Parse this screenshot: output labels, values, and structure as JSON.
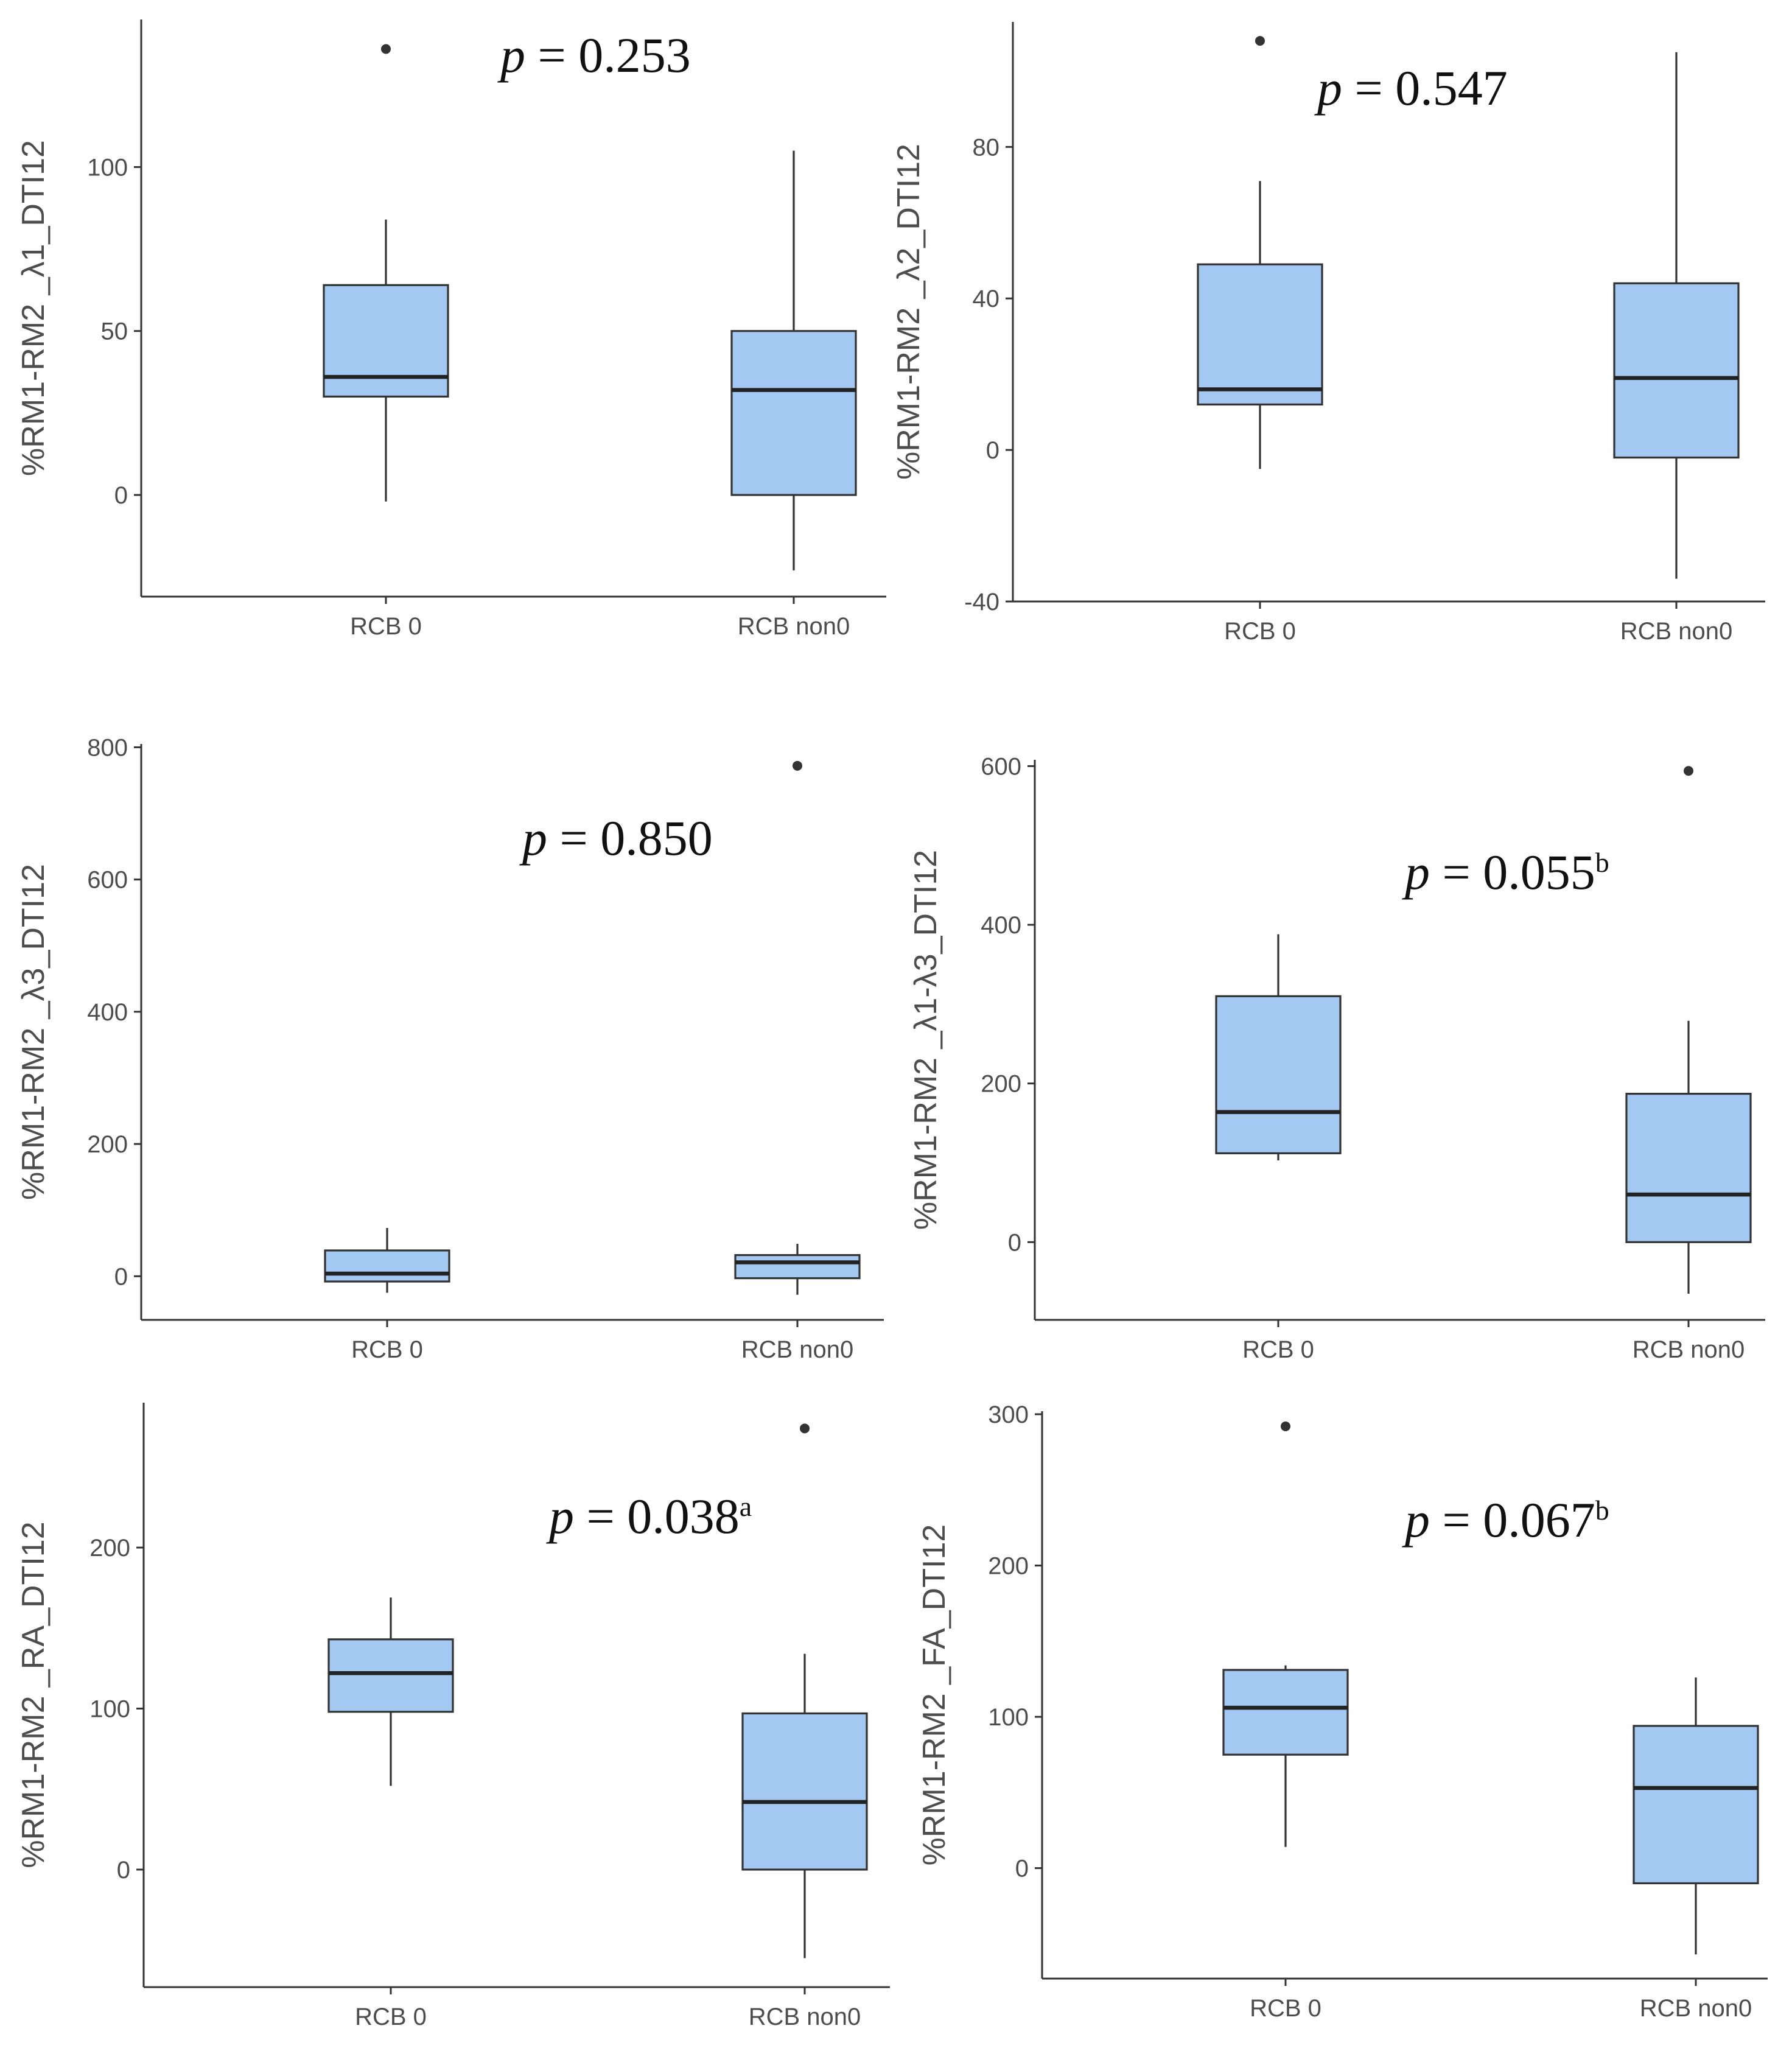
{
  "chart_data": [
    {
      "type": "box",
      "ylabel": "%RM1-RM2 _λ1_DTI12",
      "categories": [
        "RCB 0",
        "RCB non0"
      ],
      "yticks": [
        0,
        50,
        100
      ],
      "ylim": [
        -31,
        145
      ],
      "annotation": {
        "p": "p",
        "text": " = 0.253",
        "sup": ""
      },
      "boxes": [
        {
          "min": -2,
          "q1": 30,
          "median": 36,
          "q3": 64,
          "max": 84,
          "outliers": [
            136
          ]
        },
        {
          "min": -23,
          "q1": 0,
          "median": 32,
          "q3": 50,
          "max": 105,
          "outliers": []
        }
      ]
    },
    {
      "type": "box",
      "ylabel": "%RM1-RM2 _λ2_DTI12",
      "categories": [
        "RCB 0",
        "RCB non0"
      ],
      "yticks": [
        -40,
        0,
        40,
        80
      ],
      "ylim": [
        -40,
        113
      ],
      "annotation": {
        "p": "p",
        "text": " = 0.547",
        "sup": ""
      },
      "boxes": [
        {
          "min": -5,
          "q1": 12,
          "median": 16,
          "q3": 49,
          "max": 71,
          "outliers": [
            108
          ]
        },
        {
          "min": -34,
          "q1": -2,
          "median": 19,
          "q3": 44,
          "max": 105,
          "outliers": []
        }
      ]
    },
    {
      "type": "box",
      "ylabel": "%RM1-RM2 _λ3_DTI12",
      "categories": [
        "RCB 0",
        "RCB non0"
      ],
      "yticks": [
        0,
        200,
        400,
        600,
        800
      ],
      "ylim": [
        -66,
        805
      ],
      "annotation": {
        "p": "p",
        "text": " = 0.850",
        "sup": ""
      },
      "boxes": [
        {
          "min": -25,
          "q1": -8,
          "median": 4,
          "q3": 39,
          "max": 73,
          "outliers": []
        },
        {
          "min": -28,
          "q1": -3,
          "median": 21,
          "q3": 32,
          "max": 49,
          "outliers": [
            772
          ]
        }
      ]
    },
    {
      "type": "box",
      "ylabel": "%RM1-RM2 _λ1-λ3_DTI12",
      "categories": [
        "RCB 0",
        "RCB non0"
      ],
      "yticks": [
        0,
        200,
        400,
        600
      ],
      "ylim": [
        -98,
        608
      ],
      "annotation": {
        "p": "p",
        "text": " = 0.055",
        "sup": "b"
      },
      "boxes": [
        {
          "min": 103,
          "q1": 112,
          "median": 164,
          "q3": 310,
          "max": 388,
          "outliers": []
        },
        {
          "min": -65,
          "q1": 0,
          "median": 60,
          "q3": 187,
          "max": 279,
          "outliers": [
            594
          ]
        }
      ]
    },
    {
      "type": "box",
      "ylabel": "%RM1-RM2 _RA_DTI12",
      "categories": [
        "RCB 0",
        "RCB non0"
      ],
      "yticks": [
        0,
        100,
        200
      ],
      "ylim": [
        -73,
        290
      ],
      "annotation": {
        "p": "p",
        "text": " = 0.038",
        "sup": "a"
      },
      "boxes": [
        {
          "min": 52,
          "q1": 98,
          "median": 122,
          "q3": 143,
          "max": 169,
          "outliers": []
        },
        {
          "min": -55,
          "q1": 0,
          "median": 42,
          "q3": 97,
          "max": 134,
          "outliers": [
            274
          ]
        }
      ]
    },
    {
      "type": "box",
      "ylabel": "%RM1-RM2 _FA_DTI12",
      "categories": [
        "RCB 0",
        "RCB non0"
      ],
      "yticks": [
        0,
        100,
        200,
        300
      ],
      "ylim": [
        -73,
        302
      ],
      "annotation": {
        "p": "p",
        "text": " = 0.067",
        "sup": "b"
      },
      "boxes": [
        {
          "min": 14,
          "q1": 75,
          "median": 106,
          "q3": 131,
          "max": 134,
          "outliers": [
            292
          ]
        },
        {
          "min": -57,
          "q1": -10,
          "median": 53,
          "q3": 94,
          "max": 126,
          "outliers": []
        }
      ]
    }
  ]
}
